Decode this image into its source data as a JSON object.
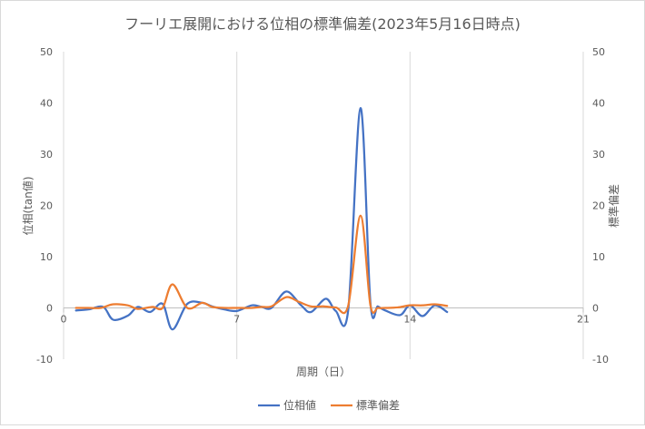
{
  "chart_data": {
    "type": "line",
    "title": "フーリエ展開における位相の標準偏差(2023年5月16日時点)",
    "xlabel": "周期（日）",
    "ylabel_left": "位相(tan値)",
    "ylabel_right": "標準偏差",
    "xlim": [
      0,
      21
    ],
    "x_ticks": [
      0,
      7,
      14,
      21
    ],
    "ylim_left": [
      -10,
      50
    ],
    "ylim_right": [
      -10,
      50
    ],
    "y_ticks": [
      -10,
      0,
      10,
      20,
      30,
      40,
      50
    ],
    "grid": "vertical",
    "legend_position": "bottom",
    "series": [
      {
        "name": "位相値",
        "color": "#4472C4",
        "axis": "left",
        "x": [
          0.5,
          1.0,
          1.6,
          2.0,
          2.6,
          3.0,
          3.5,
          4.0,
          4.4,
          5.0,
          5.6,
          6.0,
          6.5,
          7.0,
          7.6,
          8.0,
          8.4,
          9.0,
          9.6,
          10.0,
          10.6,
          11.0,
          11.5,
          12.0,
          12.4,
          12.7,
          13.0,
          13.6,
          14.0,
          14.5,
          15.0,
          15.5
        ],
        "y": [
          -0.5,
          -0.3,
          0.2,
          -2.3,
          -1.5,
          0.2,
          -0.8,
          0.8,
          -4.2,
          0.8,
          1.0,
          0.3,
          -0.3,
          -0.6,
          0.5,
          0.2,
          0.0,
          3.2,
          0.5,
          -0.8,
          1.8,
          -0.6,
          -0.5,
          39.0,
          1.0,
          0.3,
          -0.5,
          -1.4,
          0.5,
          -1.6,
          0.5,
          -0.8
        ]
      },
      {
        "name": "標準偏差",
        "color": "#ED7D31",
        "axis": "right",
        "x": [
          0.5,
          1.0,
          1.5,
          2.0,
          2.6,
          3.0,
          3.6,
          4.0,
          4.4,
          5.0,
          5.6,
          6.0,
          6.5,
          7.0,
          7.6,
          8.0,
          8.4,
          9.0,
          9.5,
          10.0,
          10.5,
          11.0,
          11.5,
          12.0,
          12.4,
          12.7,
          13.0,
          13.5,
          14.0,
          14.5,
          15.0,
          15.5
        ],
        "y": [
          0.0,
          0.0,
          0.0,
          0.7,
          0.5,
          -0.2,
          0.2,
          0.0,
          4.6,
          0.0,
          1.0,
          0.2,
          0.0,
          0.0,
          0.0,
          0.2,
          0.3,
          2.1,
          1.2,
          0.3,
          0.3,
          0.1,
          0.4,
          18.0,
          0.5,
          0.0,
          0.0,
          0.1,
          0.5,
          0.5,
          0.7,
          0.4
        ]
      }
    ]
  }
}
